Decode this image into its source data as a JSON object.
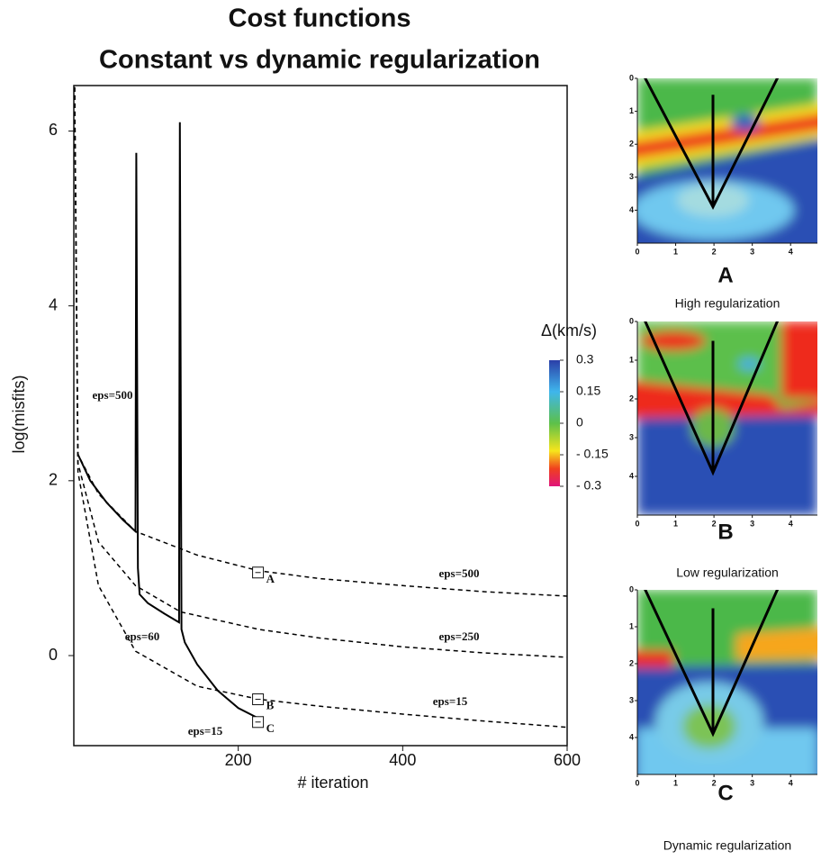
{
  "chart_data": {
    "type": "line",
    "title": "Cost functions",
    "subtitle": "Constant vs dynamic regularization",
    "xlabel": "# iteration",
    "ylabel": "log(misfits)",
    "xlim": [
      0,
      600
    ],
    "ylim": [
      -1.03,
      6.52
    ],
    "xticks": [
      200,
      400,
      600
    ],
    "yticks": [
      0,
      2,
      4,
      6
    ],
    "series": [
      {
        "color": "#000000",
        "dashed": false,
        "x": [
          5,
          20,
          40,
          60,
          75,
          76,
          78,
          80,
          90,
          110,
          128,
          129,
          131,
          135,
          150,
          175,
          200,
          225
        ],
        "values": [
          2.3,
          2.0,
          1.75,
          1.55,
          1.42,
          5.75,
          1.0,
          0.7,
          0.6,
          0.48,
          0.38,
          6.1,
          0.3,
          0.15,
          -0.1,
          -0.4,
          -0.6,
          -0.72
        ]
      },
      {
        "color": "#000000",
        "dashed": true,
        "x": [
          1,
          5,
          30,
          75,
          150,
          225,
          300,
          400,
          500,
          600
        ],
        "values": [
          6.5,
          2.3,
          1.85,
          1.42,
          1.15,
          0.97,
          0.88,
          0.8,
          0.73,
          0.68
        ]
      },
      {
        "color": "#000000",
        "dashed": true,
        "x": [
          1,
          5,
          30,
          75,
          130,
          225,
          300,
          400,
          500,
          600
        ],
        "values": [
          6.5,
          2.2,
          1.3,
          0.8,
          0.5,
          0.3,
          0.2,
          0.1,
          0.03,
          -0.02
        ]
      },
      {
        "color": "#000000",
        "dashed": true,
        "x": [
          1,
          5,
          30,
          75,
          150,
          225,
          300,
          400,
          500,
          600
        ],
        "values": [
          6.5,
          2.1,
          0.8,
          0.05,
          -0.35,
          -0.5,
          -0.58,
          -0.67,
          -0.75,
          -0.82
        ]
      }
    ],
    "annotations": [
      "eps=500",
      "eps=500",
      "eps=250",
      "eps=60",
      "eps=15",
      "eps=15"
    ],
    "markers": [
      {
        "label": "A",
        "x": 224,
        "y": 0.95
      },
      {
        "label": "B",
        "x": 224,
        "y": -0.5
      },
      {
        "label": "C",
        "x": 224,
        "y": -0.76
      }
    ]
  },
  "colorbar": {
    "title": "Δ(km/s)",
    "lim": [
      -0.3,
      0.3
    ],
    "ticks": [
      0.3,
      0.15,
      0,
      {
        "value": -0.15,
        "label": "- 0.15"
      },
      {
        "value": -0.3,
        "label": "- 0.3"
      }
    ]
  },
  "panels": {
    "xlim": [
      0,
      4.7
    ],
    "ylim": [
      0,
      5
    ],
    "xticks": [
      0,
      1,
      2,
      3,
      4
    ],
    "yticks": [
      0,
      1,
      2,
      3,
      4
    ],
    "items": [
      {
        "label": "A",
        "caption": "High regularization"
      },
      {
        "label": "B",
        "caption": "Low regularization"
      },
      {
        "label": "C",
        "caption": "Dynamic regularization"
      }
    ]
  }
}
